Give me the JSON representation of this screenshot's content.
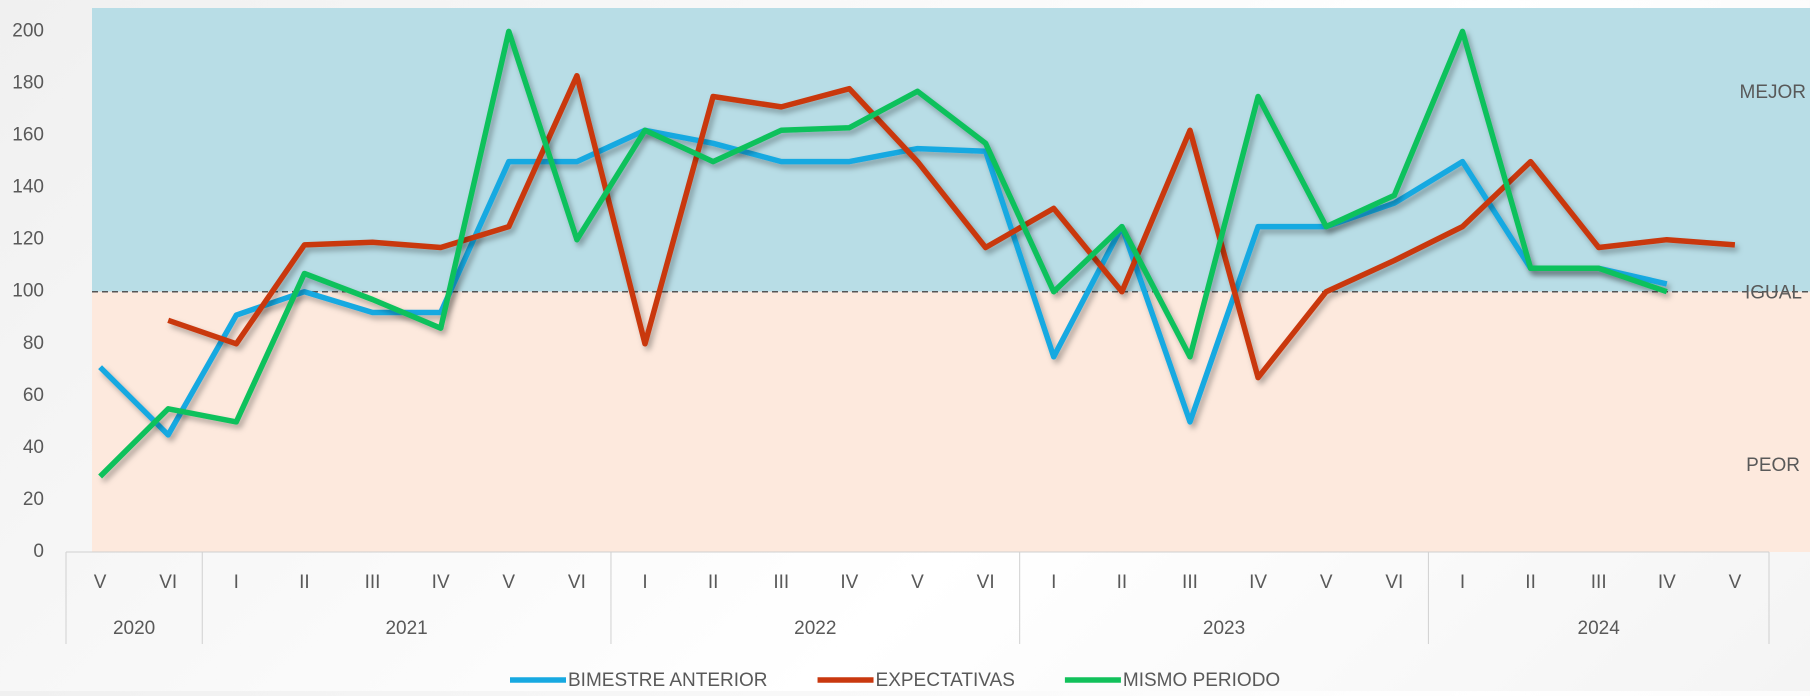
{
  "chart_data": {
    "type": "line",
    "groups": [
      {
        "name": "2020",
        "categories": [
          "V",
          "VI"
        ]
      },
      {
        "name": "2021",
        "categories": [
          "I",
          "II",
          "III",
          "IV",
          "V",
          "VI"
        ]
      },
      {
        "name": "2022",
        "categories": [
          "I",
          "II",
          "III",
          "IV",
          "V",
          "VI"
        ]
      },
      {
        "name": "2023",
        "categories": [
          "I",
          "II",
          "III",
          "IV",
          "V",
          "VI"
        ]
      },
      {
        "name": "2024",
        "categories": [
          "I",
          "II",
          "III",
          "IV",
          "V"
        ]
      }
    ],
    "series": [
      {
        "name": "BIMESTRE ANTERIOR",
        "color": "#17a9e1",
        "values": [
          71,
          45,
          91,
          100,
          92,
          92,
          150,
          150,
          162,
          157,
          150,
          150,
          155,
          154,
          75,
          125,
          50,
          125,
          125,
          134,
          150,
          109,
          109,
          103,
          null
        ]
      },
      {
        "name": "EXPECTATIVAS",
        "color": "#c9380f",
        "values": [
          null,
          89,
          80,
          118,
          119,
          117,
          125,
          183,
          80,
          175,
          171,
          178,
          150,
          117,
          132,
          100,
          162,
          67,
          100,
          112,
          125,
          150,
          117,
          120,
          118
        ]
      },
      {
        "name": "MISMO PERIODO",
        "color": "#11c15b",
        "values": [
          29,
          55,
          50,
          107,
          97,
          86,
          200,
          120,
          162,
          150,
          162,
          163,
          177,
          157,
          100,
          125,
          75,
          175,
          125,
          137,
          200,
          109,
          109,
          100,
          null
        ]
      }
    ],
    "ylim": [
      0,
      209
    ],
    "yticks": [
      0,
      20,
      40,
      60,
      80,
      100,
      120,
      140,
      160,
      180,
      200
    ],
    "reference_line": {
      "value": 100,
      "label": "IGUAL"
    },
    "zones": [
      {
        "label": "MEJOR",
        "color": "#b8dde6"
      },
      {
        "label": "PEOR",
        "color": "#fde9dd"
      }
    ],
    "legend": "bottom"
  }
}
